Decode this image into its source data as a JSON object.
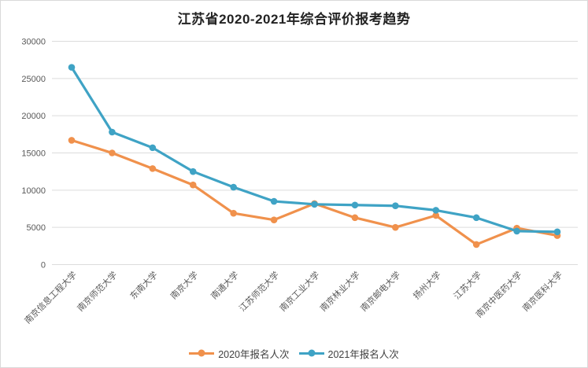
{
  "title": "江苏省2020-2021年综合评价报考趋势",
  "chart_data": {
    "type": "line",
    "title": "江苏省2020-2021年综合评价报考趋势",
    "categories": [
      "南京信息工程大学",
      "南京师范大学",
      "东南大学",
      "南京大学",
      "南通大学",
      "江苏师范大学",
      "南京工业大学",
      "南京林业大学",
      "南京邮电大学",
      "扬州大学",
      "江苏大学",
      "南京中医药大学",
      "南京医科大学"
    ],
    "series": [
      {
        "name": "2020年报名人次",
        "color": "#F0914C",
        "values": [
          16700,
          15000,
          12900,
          10700,
          6900,
          6000,
          8200,
          6300,
          5000,
          6600,
          2700,
          4900,
          3900
        ]
      },
      {
        "name": "2021年报名人次",
        "color": "#3FA3C5",
        "values": [
          26500,
          17800,
          15700,
          12500,
          10400,
          8500,
          8100,
          8000,
          7900,
          7300,
          6300,
          4500,
          4400
        ]
      }
    ],
    "xlabel": "",
    "ylabel": "",
    "ylim": [
      0,
      30000
    ],
    "ytick_step": 5000,
    "ytick_labels": [
      "0",
      "5000",
      "10000",
      "15000",
      "20000",
      "25000",
      "30000"
    ],
    "grid": "horizontal",
    "legend_position": "bottom",
    "x_label_rotation_deg": 45
  },
  "colors": {
    "grid": "#dcdcdc",
    "axis_text": "#595959",
    "title_text": "#222222",
    "series_2020": "#F0914C",
    "series_2021": "#3FA3C5"
  }
}
